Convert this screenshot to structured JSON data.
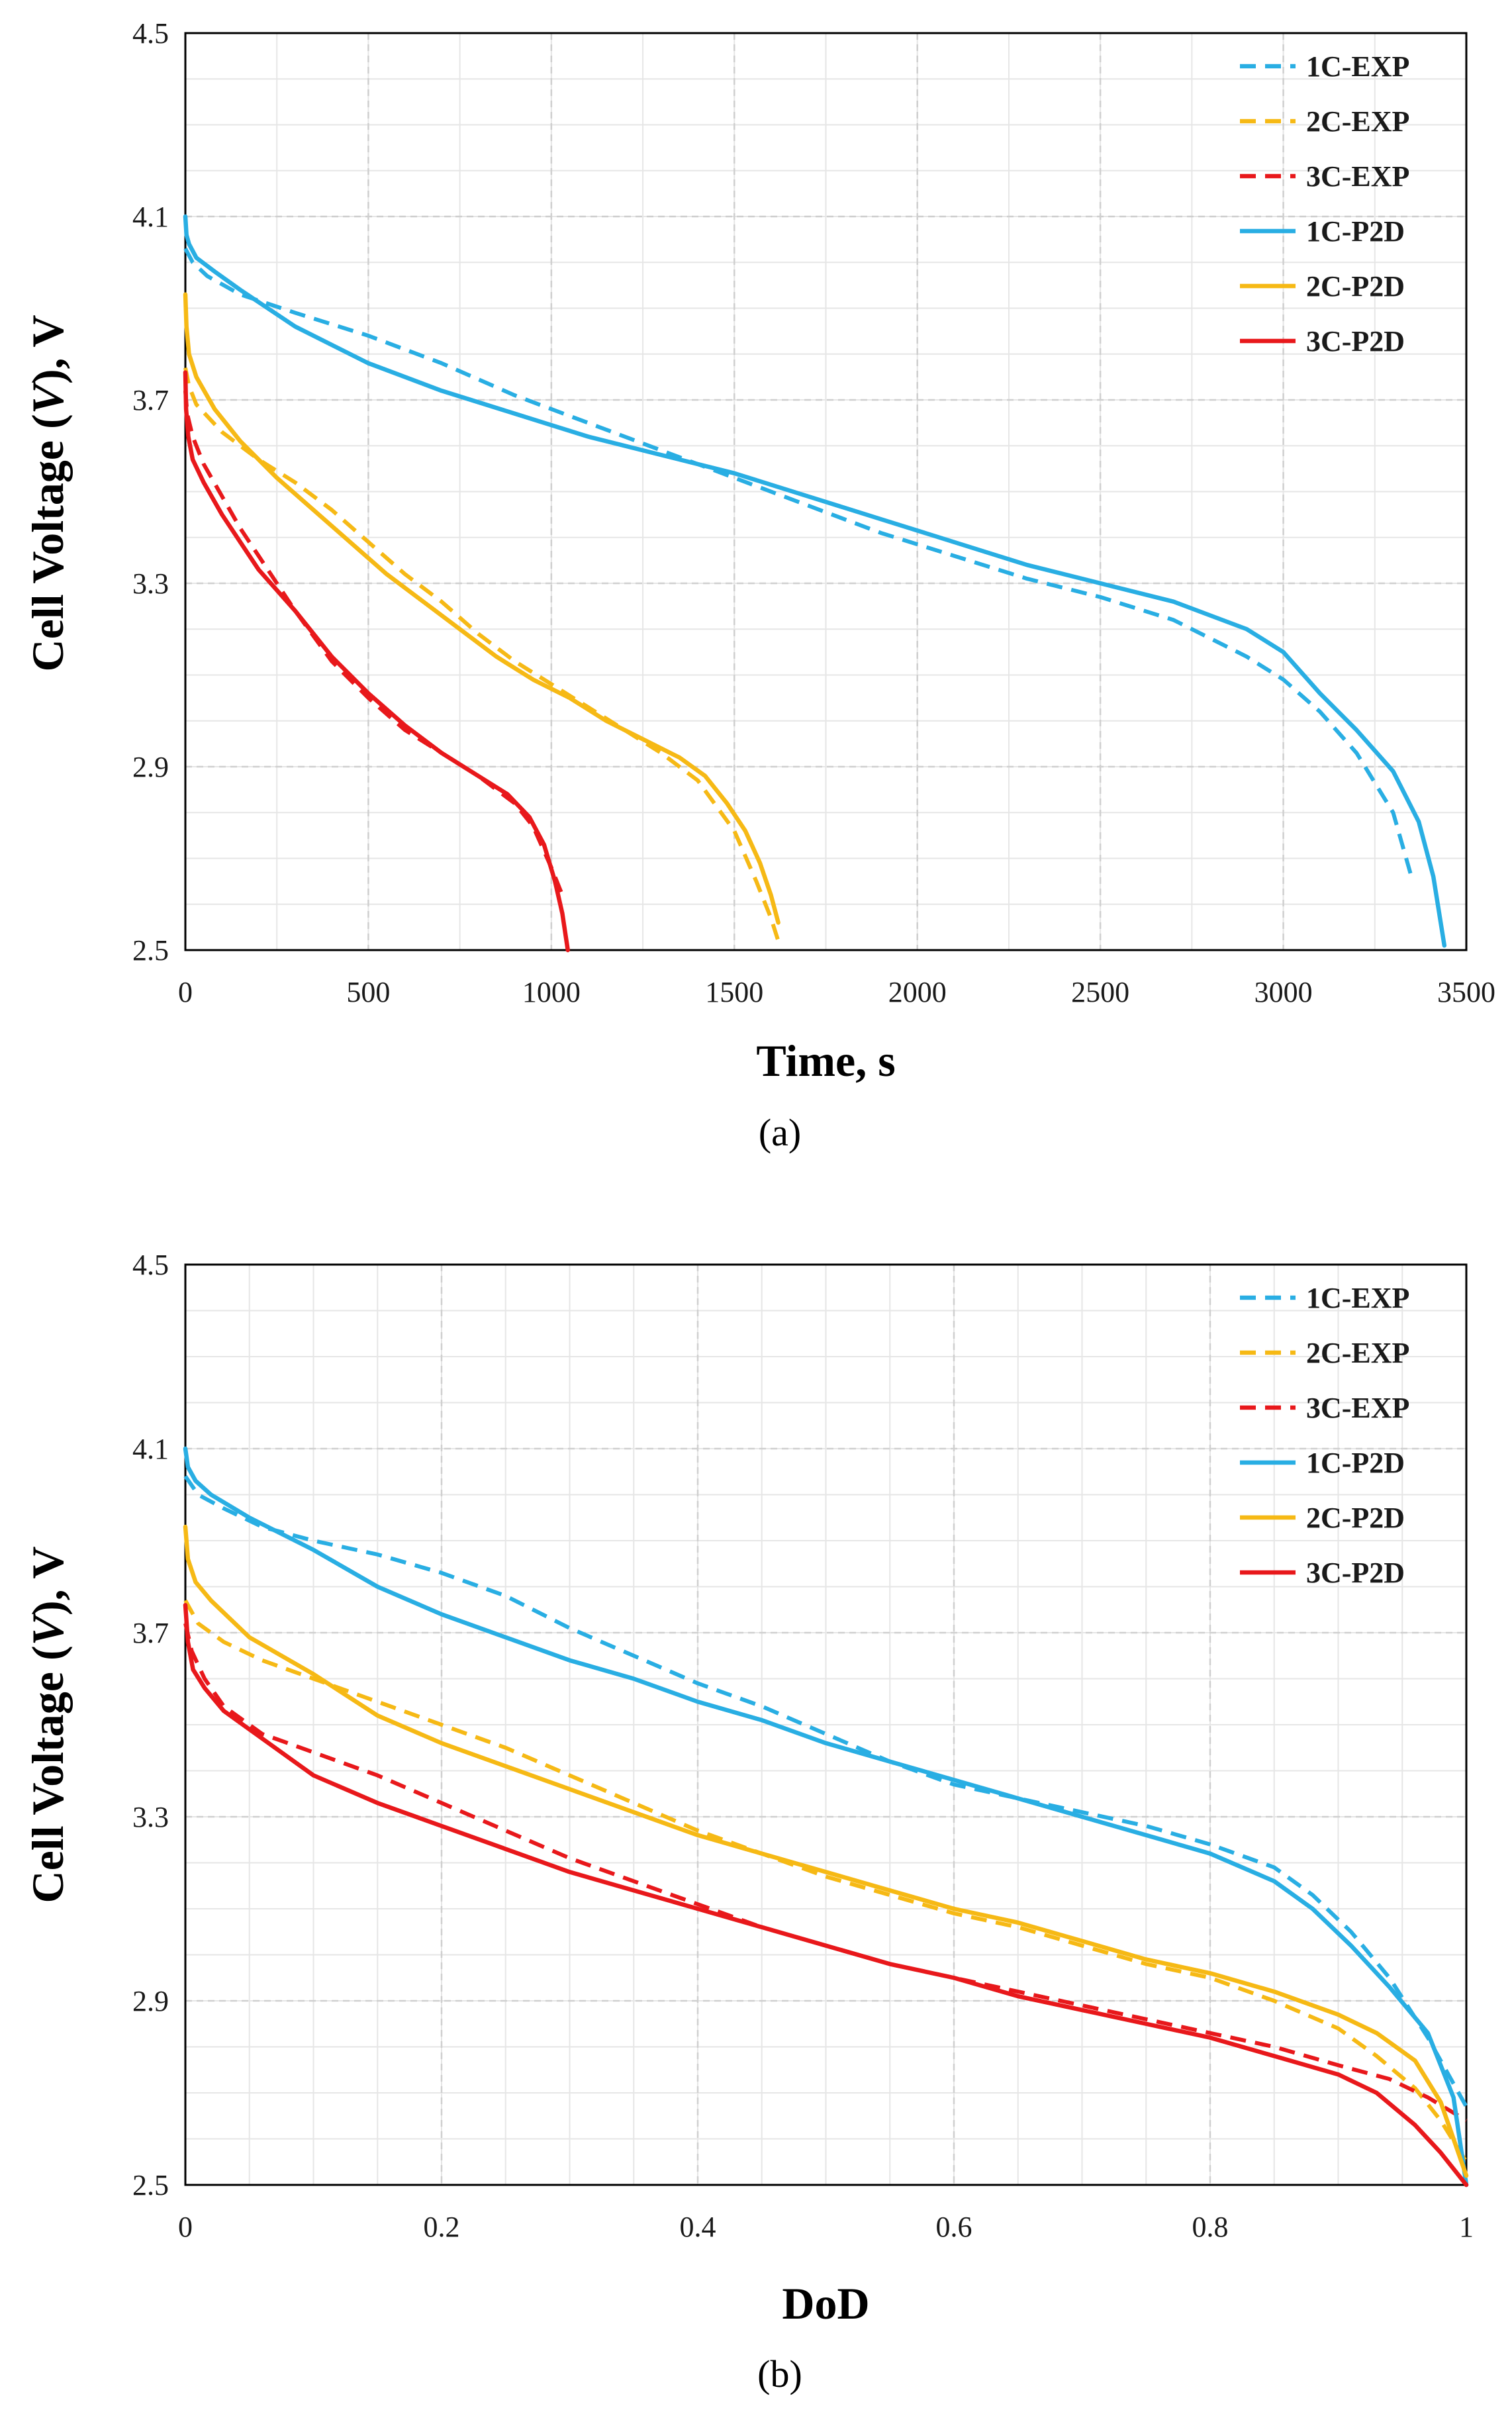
{
  "figure": {
    "panel_labels": [
      "(a)",
      "(b)"
    ]
  },
  "chart_data": [
    {
      "type": "line",
      "panel": "a",
      "title": "",
      "xlabel": "Time, s",
      "ylabel_parts": [
        "Cell Voltage (",
        "V",
        "), V"
      ],
      "xlim": [
        0,
        3500
      ],
      "ylim": [
        2.5,
        4.5
      ],
      "xticks": [
        0,
        500,
        1000,
        1500,
        2000,
        2500,
        3000,
        3500
      ],
      "yticks": [
        2.5,
        2.9,
        3.3,
        3.7,
        4.1,
        4.5
      ],
      "xtick_labels": [
        "0",
        "500",
        "1000",
        "1500",
        "2000",
        "2500",
        "3000",
        "3500"
      ],
      "ytick_labels": [
        "2.5",
        "2.9",
        "3.3",
        "3.7",
        "4.1",
        "4.5"
      ],
      "x_minor_step": 250,
      "y_minor_step": 0.1,
      "grid": true,
      "legend_position": "top-right",
      "series": [
        {
          "name": "1C-EXP",
          "color": "#29aee3",
          "dash": true,
          "x": [
            0,
            20,
            60,
            150,
            300,
            500,
            700,
            900,
            1100,
            1300,
            1500,
            1700,
            1900,
            2100,
            2300,
            2500,
            2700,
            2900,
            3000,
            3100,
            3200,
            3300,
            3350
          ],
          "y": [
            4.03,
            4.0,
            3.97,
            3.93,
            3.89,
            3.84,
            3.78,
            3.71,
            3.65,
            3.59,
            3.53,
            3.47,
            3.41,
            3.36,
            3.31,
            3.27,
            3.22,
            3.14,
            3.09,
            3.02,
            2.93,
            2.8,
            2.66
          ]
        },
        {
          "name": "2C-EXP",
          "color": "#f6b915",
          "dash": true,
          "x": [
            0,
            10,
            30,
            100,
            200,
            300,
            400,
            500,
            600,
            700,
            800,
            900,
            1000,
            1100,
            1200,
            1300,
            1400,
            1500,
            1560,
            1600,
            1620
          ],
          "y": [
            3.77,
            3.73,
            3.69,
            3.63,
            3.57,
            3.52,
            3.46,
            3.39,
            3.32,
            3.26,
            3.19,
            3.13,
            3.08,
            3.03,
            2.98,
            2.93,
            2.87,
            2.76,
            2.65,
            2.57,
            2.52
          ]
        },
        {
          "name": "3C-EXP",
          "color": "#e8181b",
          "dash": true,
          "x": [
            0,
            5,
            20,
            50,
            100,
            150,
            200,
            250,
            300,
            400,
            500,
            600,
            700,
            800,
            900,
            950,
            1000,
            1030
          ],
          "y": [
            3.72,
            3.67,
            3.62,
            3.56,
            3.49,
            3.42,
            3.36,
            3.3,
            3.24,
            3.13,
            3.05,
            2.98,
            2.93,
            2.88,
            2.82,
            2.77,
            2.68,
            2.62
          ]
        },
        {
          "name": "1C-P2D",
          "color": "#29aee3",
          "dash": false,
          "x": [
            0,
            3,
            10,
            30,
            80,
            150,
            300,
            500,
            700,
            900,
            1100,
            1300,
            1500,
            1700,
            1900,
            2100,
            2300,
            2500,
            2700,
            2900,
            3000,
            3100,
            3200,
            3300,
            3370,
            3410,
            3440
          ],
          "y": [
            4.1,
            4.06,
            4.04,
            4.01,
            3.98,
            3.94,
            3.86,
            3.78,
            3.72,
            3.67,
            3.62,
            3.58,
            3.54,
            3.49,
            3.44,
            3.39,
            3.34,
            3.3,
            3.26,
            3.2,
            3.15,
            3.06,
            2.98,
            2.89,
            2.78,
            2.66,
            2.51
          ]
        },
        {
          "name": "2C-P2D",
          "color": "#f6b915",
          "dash": false,
          "x": [
            0,
            3,
            10,
            30,
            80,
            150,
            250,
            350,
            450,
            550,
            650,
            750,
            850,
            950,
            1050,
            1150,
            1250,
            1350,
            1420,
            1480,
            1530,
            1570,
            1600,
            1620
          ],
          "y": [
            3.93,
            3.86,
            3.8,
            3.75,
            3.68,
            3.61,
            3.53,
            3.46,
            3.39,
            3.32,
            3.26,
            3.2,
            3.14,
            3.09,
            3.05,
            3.0,
            2.96,
            2.92,
            2.88,
            2.82,
            2.76,
            2.69,
            2.62,
            2.56
          ]
        },
        {
          "name": "3C-P2D",
          "color": "#e8181b",
          "dash": false,
          "x": [
            0,
            2,
            8,
            20,
            50,
            100,
            150,
            200,
            300,
            400,
            500,
            600,
            700,
            800,
            880,
            940,
            980,
            1010,
            1030,
            1045
          ],
          "y": [
            3.76,
            3.68,
            3.62,
            3.57,
            3.52,
            3.45,
            3.39,
            3.33,
            3.24,
            3.14,
            3.06,
            2.99,
            2.93,
            2.88,
            2.84,
            2.79,
            2.73,
            2.65,
            2.58,
            2.5
          ]
        }
      ]
    },
    {
      "type": "line",
      "panel": "b",
      "title": "",
      "xlabel": "DoD",
      "ylabel_parts": [
        "Cell Voltage (",
        "V",
        "), V"
      ],
      "xlim": [
        0,
        1
      ],
      "ylim": [
        2.5,
        4.5
      ],
      "xticks": [
        0,
        0.2,
        0.4,
        0.6,
        0.8,
        1
      ],
      "yticks": [
        2.5,
        2.9,
        3.3,
        3.7,
        4.1,
        4.5
      ],
      "xtick_labels": [
        "0",
        "0.2",
        "0.4",
        "0.6",
        "0.8",
        "1"
      ],
      "ytick_labels": [
        "2.5",
        "2.9",
        "3.3",
        "3.7",
        "4.1",
        "4.5"
      ],
      "x_minor_step": 0.05,
      "y_minor_step": 0.1,
      "grid": true,
      "legend_position": "top-right",
      "series": [
        {
          "name": "1C-EXP",
          "color": "#29aee3",
          "dash": true,
          "x": [
            0,
            0.01,
            0.03,
            0.06,
            0.1,
            0.15,
            0.2,
            0.25,
            0.3,
            0.35,
            0.4,
            0.45,
            0.5,
            0.55,
            0.6,
            0.65,
            0.7,
            0.75,
            0.8,
            0.85,
            0.88,
            0.91,
            0.94,
            0.97,
            1.0
          ],
          "y": [
            4.04,
            4.0,
            3.97,
            3.93,
            3.9,
            3.87,
            3.83,
            3.78,
            3.71,
            3.65,
            3.59,
            3.54,
            3.48,
            3.42,
            3.37,
            3.34,
            3.31,
            3.28,
            3.24,
            3.19,
            3.13,
            3.05,
            2.95,
            2.82,
            2.67
          ]
        },
        {
          "name": "2C-EXP",
          "color": "#f6b915",
          "dash": true,
          "x": [
            0,
            0.01,
            0.03,
            0.06,
            0.1,
            0.15,
            0.2,
            0.25,
            0.3,
            0.35,
            0.4,
            0.45,
            0.5,
            0.55,
            0.6,
            0.65,
            0.7,
            0.75,
            0.8,
            0.85,
            0.9,
            0.93,
            0.96,
            0.98,
            1.0
          ],
          "y": [
            3.77,
            3.72,
            3.68,
            3.64,
            3.6,
            3.55,
            3.5,
            3.45,
            3.39,
            3.33,
            3.27,
            3.22,
            3.17,
            3.13,
            3.09,
            3.06,
            3.02,
            2.98,
            2.95,
            2.9,
            2.84,
            2.78,
            2.71,
            2.64,
            2.55
          ]
        },
        {
          "name": "3C-EXP",
          "color": "#e8181b",
          "dash": true,
          "x": [
            0,
            0.005,
            0.015,
            0.03,
            0.06,
            0.1,
            0.15,
            0.2,
            0.25,
            0.3,
            0.35,
            0.4,
            0.45,
            0.5,
            0.55,
            0.6,
            0.65,
            0.7,
            0.75,
            0.8,
            0.85,
            0.9,
            0.94,
            0.97,
            1.0
          ],
          "y": [
            3.72,
            3.66,
            3.6,
            3.54,
            3.48,
            3.44,
            3.39,
            3.33,
            3.27,
            3.21,
            3.16,
            3.11,
            3.06,
            3.02,
            2.98,
            2.95,
            2.92,
            2.89,
            2.86,
            2.83,
            2.8,
            2.76,
            2.73,
            2.69,
            2.64
          ]
        },
        {
          "name": "1C-P2D",
          "color": "#29aee3",
          "dash": false,
          "x": [
            0,
            0.002,
            0.008,
            0.02,
            0.05,
            0.1,
            0.15,
            0.2,
            0.25,
            0.3,
            0.35,
            0.4,
            0.45,
            0.5,
            0.55,
            0.6,
            0.65,
            0.7,
            0.75,
            0.8,
            0.85,
            0.88,
            0.91,
            0.94,
            0.97,
            0.99,
            1.0
          ],
          "y": [
            4.1,
            4.06,
            4.03,
            4.0,
            3.95,
            3.88,
            3.8,
            3.74,
            3.69,
            3.64,
            3.6,
            3.55,
            3.51,
            3.46,
            3.42,
            3.38,
            3.34,
            3.3,
            3.26,
            3.22,
            3.16,
            3.1,
            3.02,
            2.93,
            2.83,
            2.69,
            2.5
          ]
        },
        {
          "name": "2C-P2D",
          "color": "#f6b915",
          "dash": false,
          "x": [
            0,
            0.002,
            0.008,
            0.02,
            0.05,
            0.1,
            0.15,
            0.2,
            0.25,
            0.3,
            0.35,
            0.4,
            0.45,
            0.5,
            0.55,
            0.6,
            0.65,
            0.7,
            0.75,
            0.8,
            0.85,
            0.9,
            0.93,
            0.96,
            0.98,
            1.0
          ],
          "y": [
            3.93,
            3.86,
            3.81,
            3.77,
            3.69,
            3.61,
            3.52,
            3.46,
            3.41,
            3.36,
            3.31,
            3.26,
            3.22,
            3.18,
            3.14,
            3.1,
            3.07,
            3.03,
            2.99,
            2.96,
            2.92,
            2.87,
            2.83,
            2.77,
            2.68,
            2.52
          ]
        },
        {
          "name": "3C-P2D",
          "color": "#e8181b",
          "dash": false,
          "x": [
            0,
            0.002,
            0.006,
            0.015,
            0.03,
            0.06,
            0.1,
            0.15,
            0.2,
            0.25,
            0.3,
            0.35,
            0.4,
            0.45,
            0.5,
            0.55,
            0.6,
            0.65,
            0.7,
            0.75,
            0.8,
            0.85,
            0.9,
            0.93,
            0.96,
            0.98,
            1.0
          ],
          "y": [
            3.76,
            3.68,
            3.62,
            3.58,
            3.53,
            3.47,
            3.39,
            3.33,
            3.28,
            3.23,
            3.18,
            3.14,
            3.1,
            3.06,
            3.02,
            2.98,
            2.95,
            2.91,
            2.88,
            2.85,
            2.82,
            2.78,
            2.74,
            2.7,
            2.63,
            2.57,
            2.5
          ]
        }
      ]
    }
  ]
}
